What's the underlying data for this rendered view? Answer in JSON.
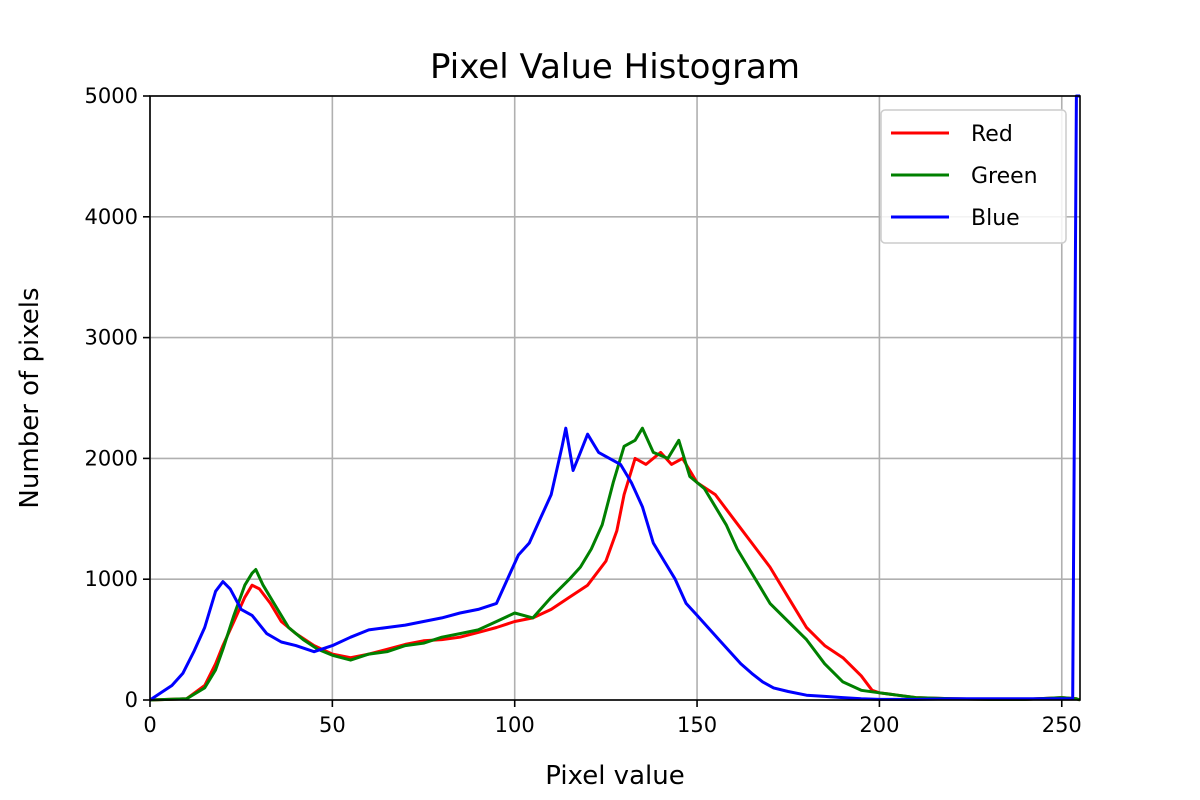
{
  "chart_data": {
    "type": "line",
    "title": "Pixel Value Histogram",
    "xlabel": "Pixel value",
    "ylabel": "Number of pixels",
    "xlim": [
      0,
      255
    ],
    "ylim": [
      0,
      5000
    ],
    "xticks": [
      0,
      50,
      100,
      150,
      200,
      250
    ],
    "yticks": [
      0,
      1000,
      2000,
      3000,
      4000,
      5000
    ],
    "grid": true,
    "legend_position": "top-right",
    "series": [
      {
        "name": "Red",
        "color": "#ff0000",
        "points": [
          [
            0,
            0
          ],
          [
            10,
            10
          ],
          [
            15,
            120
          ],
          [
            18,
            300
          ],
          [
            20,
            450
          ],
          [
            23,
            650
          ],
          [
            26,
            850
          ],
          [
            28,
            950
          ],
          [
            30,
            920
          ],
          [
            33,
            800
          ],
          [
            36,
            650
          ],
          [
            40,
            550
          ],
          [
            45,
            450
          ],
          [
            50,
            380
          ],
          [
            55,
            350
          ],
          [
            60,
            380
          ],
          [
            65,
            420
          ],
          [
            70,
            460
          ],
          [
            75,
            490
          ],
          [
            80,
            500
          ],
          [
            85,
            520
          ],
          [
            90,
            560
          ],
          [
            95,
            600
          ],
          [
            100,
            650
          ],
          [
            105,
            680
          ],
          [
            110,
            750
          ],
          [
            115,
            850
          ],
          [
            120,
            950
          ],
          [
            125,
            1150
          ],
          [
            128,
            1400
          ],
          [
            130,
            1700
          ],
          [
            133,
            2000
          ],
          [
            136,
            1950
          ],
          [
            140,
            2050
          ],
          [
            143,
            1950
          ],
          [
            146,
            2000
          ],
          [
            150,
            1800
          ],
          [
            155,
            1700
          ],
          [
            160,
            1500
          ],
          [
            165,
            1300
          ],
          [
            170,
            1100
          ],
          [
            175,
            850
          ],
          [
            180,
            600
          ],
          [
            185,
            450
          ],
          [
            190,
            350
          ],
          [
            195,
            200
          ],
          [
            198,
            80
          ],
          [
            200,
            60
          ],
          [
            205,
            40
          ],
          [
            210,
            20
          ],
          [
            220,
            10
          ],
          [
            230,
            5
          ],
          [
            240,
            5
          ],
          [
            250,
            20
          ],
          [
            254,
            10
          ],
          [
            255,
            0
          ]
        ]
      },
      {
        "name": "Green",
        "color": "#008000",
        "points": [
          [
            0,
            0
          ],
          [
            10,
            10
          ],
          [
            15,
            100
          ],
          [
            18,
            250
          ],
          [
            20,
            420
          ],
          [
            23,
            700
          ],
          [
            26,
            950
          ],
          [
            28,
            1050
          ],
          [
            29,
            1080
          ],
          [
            31,
            950
          ],
          [
            34,
            800
          ],
          [
            38,
            600
          ],
          [
            42,
            500
          ],
          [
            46,
            420
          ],
          [
            50,
            370
          ],
          [
            55,
            330
          ],
          [
            60,
            380
          ],
          [
            65,
            400
          ],
          [
            70,
            450
          ],
          [
            75,
            470
          ],
          [
            80,
            520
          ],
          [
            85,
            550
          ],
          [
            90,
            580
          ],
          [
            95,
            650
          ],
          [
            100,
            720
          ],
          [
            105,
            680
          ],
          [
            110,
            850
          ],
          [
            115,
            1000
          ],
          [
            118,
            1100
          ],
          [
            121,
            1250
          ],
          [
            124,
            1450
          ],
          [
            127,
            1800
          ],
          [
            130,
            2100
          ],
          [
            133,
            2150
          ],
          [
            135,
            2250
          ],
          [
            138,
            2050
          ],
          [
            142,
            2000
          ],
          [
            145,
            2150
          ],
          [
            148,
            1850
          ],
          [
            152,
            1750
          ],
          [
            155,
            1600
          ],
          [
            158,
            1450
          ],
          [
            161,
            1250
          ],
          [
            164,
            1100
          ],
          [
            167,
            950
          ],
          [
            170,
            800
          ],
          [
            175,
            650
          ],
          [
            180,
            500
          ],
          [
            185,
            300
          ],
          [
            190,
            150
          ],
          [
            195,
            80
          ],
          [
            200,
            60
          ],
          [
            205,
            40
          ],
          [
            210,
            20
          ],
          [
            220,
            10
          ],
          [
            230,
            5
          ],
          [
            240,
            5
          ],
          [
            250,
            20
          ],
          [
            254,
            10
          ],
          [
            255,
            0
          ]
        ]
      },
      {
        "name": "Blue",
        "color": "#0000ff",
        "points": [
          [
            0,
            0
          ],
          [
            3,
            60
          ],
          [
            6,
            120
          ],
          [
            9,
            220
          ],
          [
            12,
            400
          ],
          [
            15,
            600
          ],
          [
            18,
            900
          ],
          [
            20,
            980
          ],
          [
            22,
            920
          ],
          [
            25,
            750
          ],
          [
            28,
            700
          ],
          [
            32,
            550
          ],
          [
            36,
            480
          ],
          [
            40,
            450
          ],
          [
            45,
            400
          ],
          [
            50,
            450
          ],
          [
            55,
            520
          ],
          [
            60,
            580
          ],
          [
            65,
            600
          ],
          [
            70,
            620
          ],
          [
            75,
            650
          ],
          [
            80,
            680
          ],
          [
            85,
            720
          ],
          [
            90,
            750
          ],
          [
            95,
            800
          ],
          [
            98,
            1000
          ],
          [
            101,
            1200
          ],
          [
            104,
            1300
          ],
          [
            107,
            1500
          ],
          [
            110,
            1700
          ],
          [
            113,
            2100
          ],
          [
            114,
            2250
          ],
          [
            116,
            1900
          ],
          [
            118,
            2050
          ],
          [
            120,
            2200
          ],
          [
            123,
            2050
          ],
          [
            126,
            2000
          ],
          [
            129,
            1950
          ],
          [
            132,
            1800
          ],
          [
            135,
            1600
          ],
          [
            138,
            1300
          ],
          [
            141,
            1150
          ],
          [
            144,
            1000
          ],
          [
            147,
            800
          ],
          [
            150,
            700
          ],
          [
            153,
            600
          ],
          [
            156,
            500
          ],
          [
            159,
            400
          ],
          [
            162,
            300
          ],
          [
            165,
            220
          ],
          [
            168,
            150
          ],
          [
            171,
            100
          ],
          [
            175,
            70
          ],
          [
            180,
            40
          ],
          [
            185,
            30
          ],
          [
            190,
            20
          ],
          [
            195,
            10
          ],
          [
            200,
            5
          ],
          [
            210,
            5
          ],
          [
            220,
            10
          ],
          [
            230,
            10
          ],
          [
            240,
            10
          ],
          [
            250,
            10
          ],
          [
            253,
            10
          ],
          [
            254,
            5000
          ],
          [
            255,
            5000
          ]
        ]
      }
    ]
  }
}
